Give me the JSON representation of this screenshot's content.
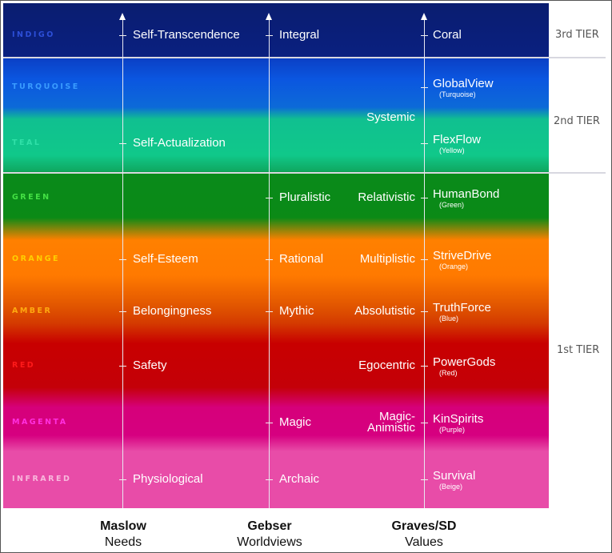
{
  "tiers": [
    "3rd TIER",
    "2nd TIER",
    "1st TIER"
  ],
  "levels": [
    {
      "name": "INDIGO",
      "color": "#2d4fd8",
      "maslow": "Self-Transcendence",
      "gebser": "Integral",
      "graves": "",
      "values": "Coral",
      "values_sub": ""
    },
    {
      "name": "TURQUOISE",
      "color": "#3a9cff",
      "maslow": "",
      "gebser": "",
      "graves": "",
      "values": "GlobalView",
      "values_sub": "(Turquoise)"
    },
    {
      "name": "TEAL",
      "color": "#30e0a8",
      "maslow": "Self-Actualization",
      "gebser": "",
      "graves": "",
      "values": "FlexFlow",
      "values_sub": "(Yellow)"
    },
    {
      "name": "GREEN",
      "color": "#44e044",
      "maslow": "",
      "gebser": "Pluralistic",
      "graves": "Relativistic",
      "values": "HumanBond",
      "values_sub": "(Green)"
    },
    {
      "name": "ORANGE",
      "color": "#ffd000",
      "maslow": "Self-Esteem",
      "gebser": "Rational",
      "graves": "Multiplistic",
      "values": "StriveDrive",
      "values_sub": "(Orange)"
    },
    {
      "name": "AMBER",
      "color": "#ffaa10",
      "maslow": "Belongingness",
      "gebser": "Mythic",
      "graves": "Absolutistic",
      "values": "TruthForce",
      "values_sub": "(Blue)"
    },
    {
      "name": "RED",
      "color": "#ff1a1a",
      "maslow": "Safety",
      "gebser": "",
      "graves": "Egocentric",
      "values": "PowerGods",
      "values_sub": "(Red)"
    },
    {
      "name": "MAGENTA",
      "color": "#ff30e0",
      "maslow": "",
      "gebser": "Magic",
      "graves": "Magic-\nAnimistic",
      "values": "KinSpirits",
      "values_sub": "(Purple)"
    },
    {
      "name": "INFRARED",
      "color": "#f8b8dc",
      "maslow": "Physiological",
      "gebser": "Archaic",
      "graves": "",
      "values": "Survival",
      "values_sub": "(Beige)"
    }
  ],
  "systemic": "Systemic",
  "columns": [
    {
      "title": "Maslow",
      "subtitle": "Needs"
    },
    {
      "title": "Gebser",
      "subtitle": "Worldviews"
    },
    {
      "title": "Graves/SD",
      "subtitle": "Values"
    }
  ]
}
